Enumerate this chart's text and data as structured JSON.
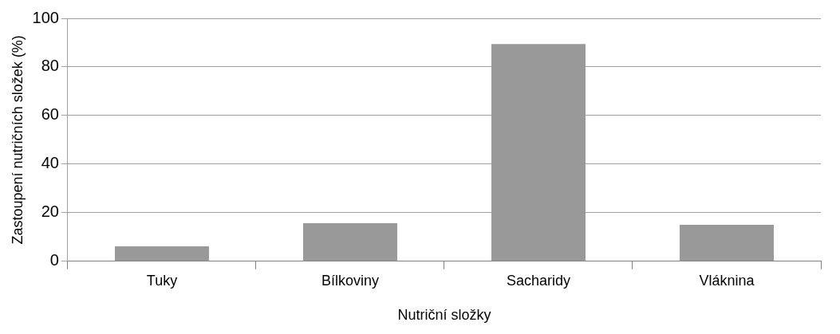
{
  "chart_data": {
    "type": "bar",
    "xlabel": "Nutriční složky",
    "ylabel": "Zastoupení nutričních složek (%)",
    "categories": [
      "Tuky",
      "Bílkoviny",
      "Sacharidy",
      "Vláknina"
    ],
    "values": [
      6.2,
      15.7,
      89.4,
      15.0
    ],
    "color": "#999999",
    "ylim": [
      0,
      100
    ],
    "yticks": [
      0,
      20,
      40,
      60,
      80,
      100
    ],
    "grid": "y",
    "legend": false
  }
}
